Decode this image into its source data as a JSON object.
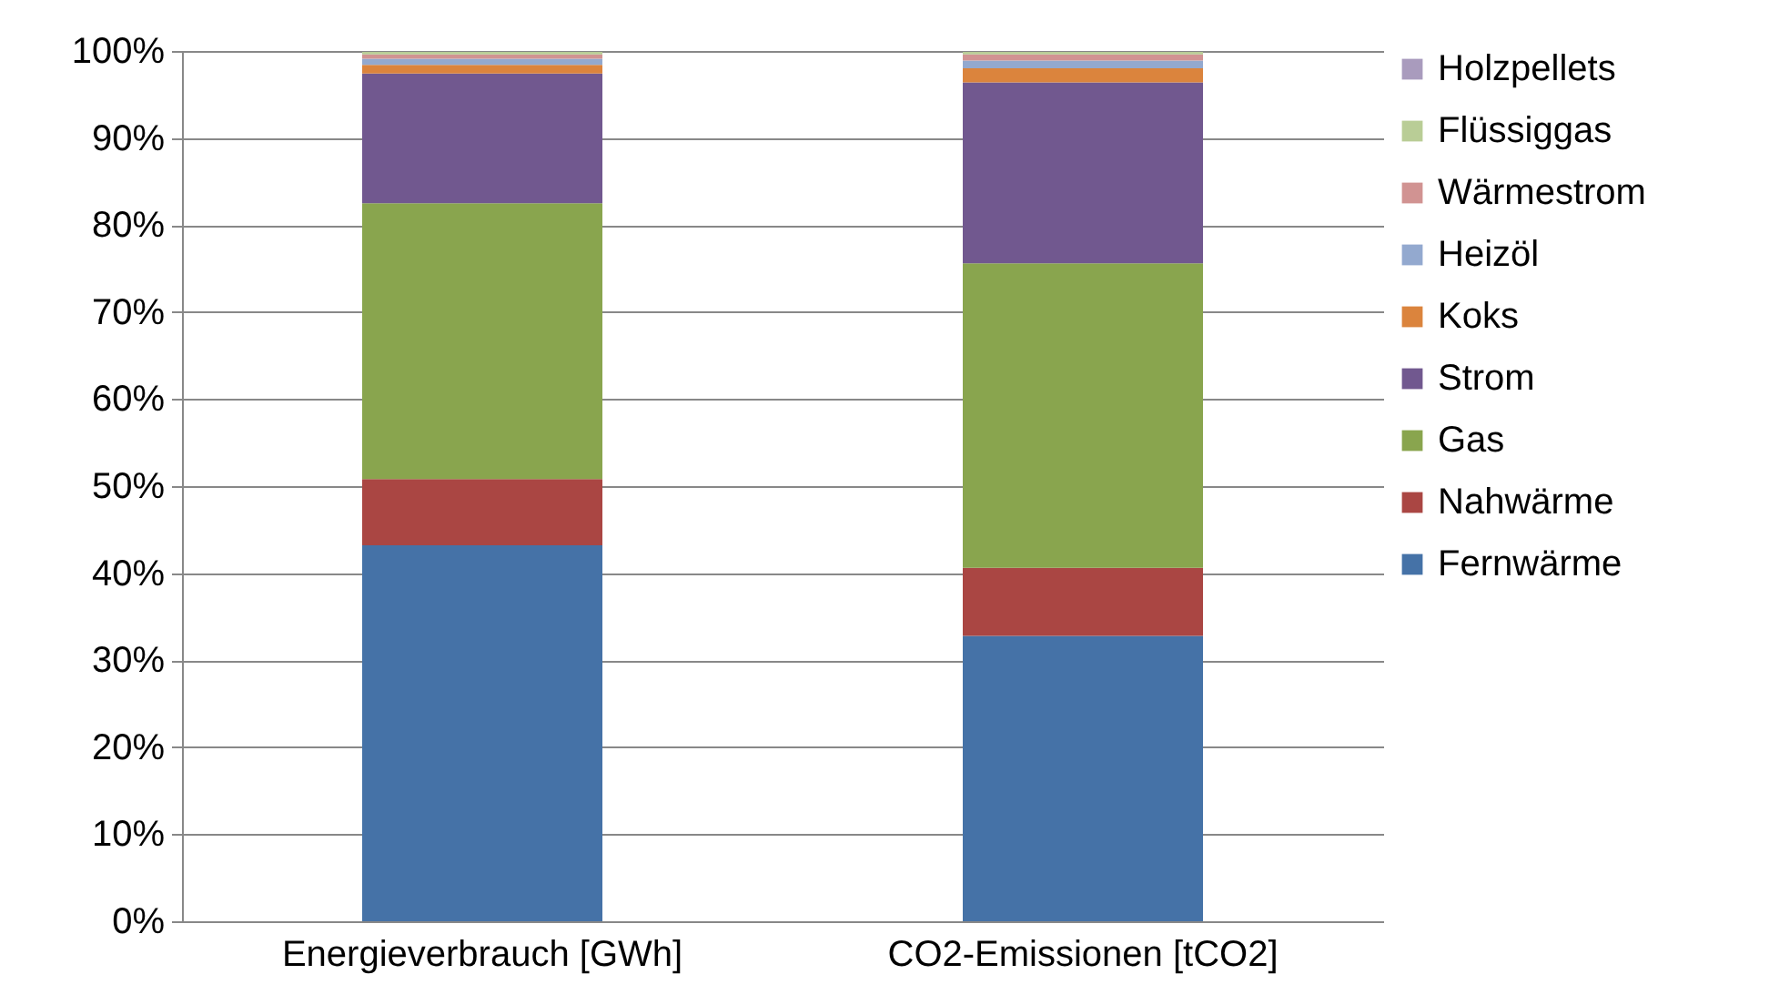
{
  "chart_data": {
    "type": "bar",
    "stacked": true,
    "categories": [
      "Energieverbrauch [GWh]",
      "CO2-Emissionen [tCO2]"
    ],
    "series": [
      {
        "name": "Fernwärme",
        "color": "#4572a7",
        "values": [
          43.2,
          32.8
        ]
      },
      {
        "name": "Nahwärme",
        "color": "#aa4643",
        "values": [
          7.6,
          7.8
        ]
      },
      {
        "name": "Gas",
        "color": "#89a54e",
        "values": [
          31.7,
          35.0
        ]
      },
      {
        "name": "Strom",
        "color": "#71588f",
        "values": [
          14.9,
          20.8
        ]
      },
      {
        "name": "Koks",
        "color": "#db843d",
        "values": [
          1.0,
          1.6
        ]
      },
      {
        "name": "Heizöl",
        "color": "#93a9cf",
        "values": [
          0.7,
          0.9
        ]
      },
      {
        "name": "Wärmestrom",
        "color": "#d19392",
        "values": [
          0.5,
          0.7
        ]
      },
      {
        "name": "Flüssiggas",
        "color": "#b9cd96",
        "values": [
          0.3,
          0.3
        ]
      },
      {
        "name": "Holzpellets",
        "color": "#a99bbd",
        "values": [
          null,
          null
        ]
      }
    ],
    "ylim": [
      0,
      100
    ],
    "yticks": [
      {
        "value": 0,
        "label": "0%"
      },
      {
        "value": 10,
        "label": "10%"
      },
      {
        "value": 20,
        "label": "20%"
      },
      {
        "value": 30,
        "label": "30%"
      },
      {
        "value": 40,
        "label": "40%"
      },
      {
        "value": 50,
        "label": "50%"
      },
      {
        "value": 60,
        "label": "60%"
      },
      {
        "value": 70,
        "label": "70%"
      },
      {
        "value": 80,
        "label": "80%"
      },
      {
        "value": 90,
        "label": "90%"
      },
      {
        "value": 100,
        "label": "100%"
      }
    ],
    "grid": "y",
    "legend": "right"
  }
}
